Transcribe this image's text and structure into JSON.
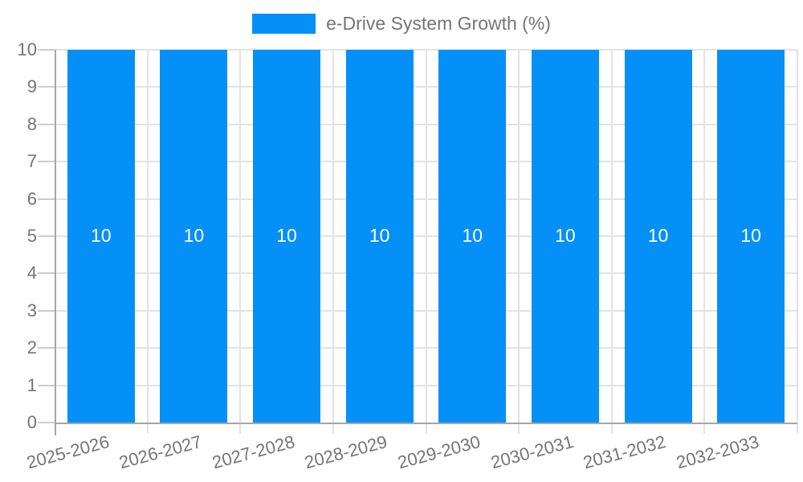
{
  "chart_data": {
    "type": "bar",
    "title": "",
    "legend": {
      "label": "e-Drive System Growth (%)",
      "position": "top"
    },
    "categories": [
      "2025-2026",
      "2026-2027",
      "2027-2028",
      "2028-2029",
      "2029-2030",
      "2030-2031",
      "2031-2032",
      "2032-2033"
    ],
    "series": [
      {
        "name": "e-Drive System Growth (%)",
        "values": [
          10,
          10,
          10,
          10,
          10,
          10,
          10,
          10
        ]
      }
    ],
    "bar_labels": [
      "10",
      "10",
      "10",
      "10",
      "10",
      "10",
      "10",
      "10"
    ],
    "xlabel": "",
    "ylabel": "",
    "ylim": [
      0,
      10
    ],
    "yticks": [
      0,
      1,
      2,
      3,
      4,
      5,
      6,
      7,
      8,
      9,
      10
    ],
    "grid": true
  },
  "colors": {
    "bar": "#0590f8",
    "axis_text": "#757575",
    "gridline": "#e3e3e3",
    "axis_line": "#a6a6a6",
    "tick": "#cccccc",
    "bar_label": "#ffffff",
    "background": "#ffffff"
  }
}
